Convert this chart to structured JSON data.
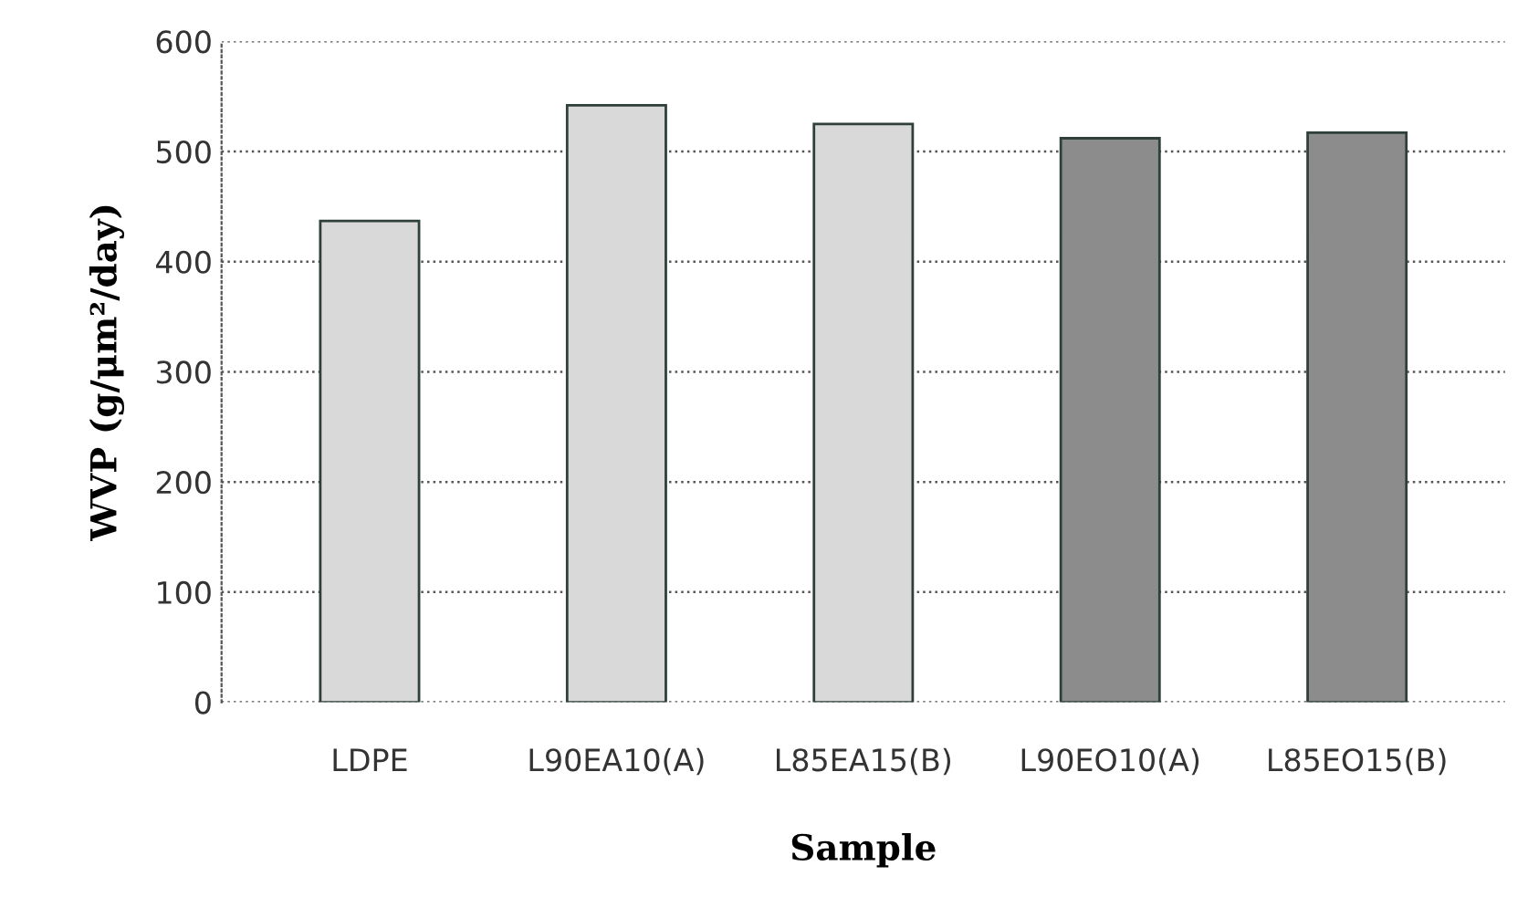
{
  "chart_data": {
    "type": "bar",
    "xlabel": "Sample",
    "ylabel": "WVP (g/μm²/day)",
    "categories": [
      "LDPE",
      "L90EA10(A)",
      "L85EA15(B)",
      "L90EO10(A)",
      "L85EO15(B)"
    ],
    "values": [
      437,
      542,
      525,
      512,
      517
    ],
    "colors": [
      "#d9d9d9",
      "#d9d9d9",
      "#d9d9d9",
      "#8c8c8c",
      "#8c8c8c"
    ],
    "ylim": [
      0,
      600
    ],
    "yticks": [
      0,
      100,
      200,
      300,
      400,
      500,
      600
    ],
    "grid": "y"
  }
}
